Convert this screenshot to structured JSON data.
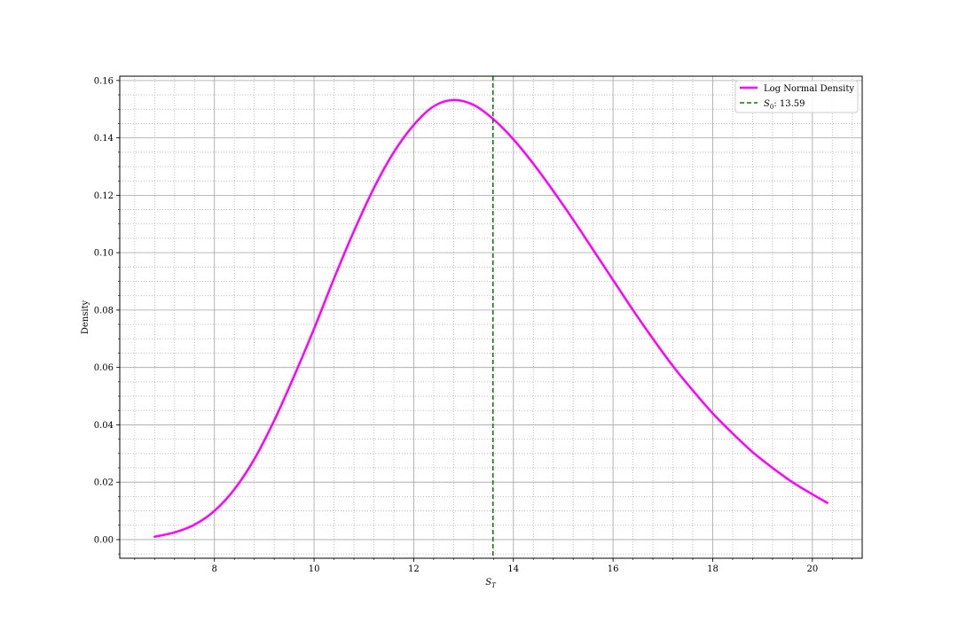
{
  "chart_data": {
    "type": "line",
    "title": "",
    "xlabel": "S",
    "xlabel_subscript": "T",
    "ylabel": "Density",
    "xlim": [
      6.1,
      21.0
    ],
    "ylim": [
      -0.0065,
      0.1615
    ],
    "x_major_ticks": [
      8,
      10,
      12,
      14,
      16,
      18,
      20
    ],
    "x_tick_labels": [
      "8",
      "10",
      "12",
      "14",
      "16",
      "18",
      "20"
    ],
    "y_major_ticks": [
      0.0,
      0.02,
      0.04,
      0.06,
      0.08,
      0.1,
      0.12,
      0.14,
      0.16
    ],
    "y_tick_labels": [
      "0.00",
      "0.02",
      "0.04",
      "0.06",
      "0.08",
      "0.10",
      "0.12",
      "0.14",
      "0.16"
    ],
    "x_minor_step": 0.4,
    "y_minor_step": 0.005,
    "grid": {
      "major": true,
      "minor": true
    },
    "legend_position": "upper right",
    "series": [
      {
        "name": "Log Normal Density",
        "kind": "line",
        "color": "#ff00ff",
        "x": [
          6.8,
          7.2,
          7.6,
          8.0,
          8.4,
          8.8,
          9.2,
          9.6,
          10.0,
          10.4,
          10.8,
          11.2,
          11.6,
          12.0,
          12.4,
          12.8,
          13.2,
          13.6,
          14.0,
          14.4,
          14.8,
          15.2,
          15.6,
          16.0,
          16.4,
          16.8,
          17.2,
          17.6,
          18.0,
          18.4,
          18.8,
          19.2,
          19.6,
          20.0,
          20.3
        ],
        "values": [
          0.001,
          0.0025,
          0.0052,
          0.01,
          0.0175,
          0.028,
          0.0415,
          0.057,
          0.0735,
          0.091,
          0.1075,
          0.1225,
          0.135,
          0.1445,
          0.151,
          0.1532,
          0.1515,
          0.1465,
          0.1395,
          0.131,
          0.1215,
          0.1115,
          0.101,
          0.0905,
          0.08,
          0.07,
          0.0605,
          0.052,
          0.044,
          0.037,
          0.0305,
          0.025,
          0.02,
          0.0158,
          0.0128
        ]
      },
      {
        "name": "S_0: 13.59",
        "label_main": "S",
        "label_sub": "0",
        "label_rest": ": 13.59",
        "kind": "vline",
        "x_value": 13.59,
        "color": "#007f00"
      }
    ]
  }
}
